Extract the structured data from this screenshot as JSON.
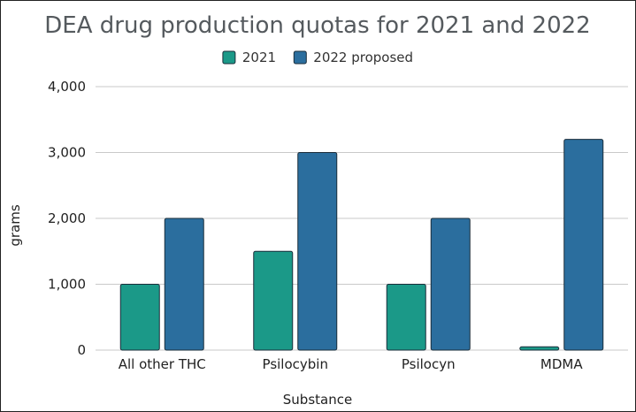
{
  "chart_data": {
    "type": "bar",
    "title": "DEA drug production quotas for 2021 and 2022",
    "xlabel": "Substance",
    "ylabel": "grams",
    "categories": [
      "All other THC",
      "Psilocybin",
      "Psilocyn",
      "MDMA"
    ],
    "series": [
      {
        "name": "2021",
        "values": [
          1000,
          1500,
          1000,
          50
        ],
        "color": "#1b9988"
      },
      {
        "name": "2022 proposed",
        "values": [
          2000,
          3000,
          2000,
          3200
        ],
        "color": "#2b6e9e"
      }
    ],
    "ylim": [
      0,
      4000
    ],
    "yticks": [
      0,
      1000,
      2000,
      3000,
      4000
    ],
    "ytick_labels": [
      "0",
      "1,000",
      "2,000",
      "3,000",
      "4,000"
    ],
    "grid": true,
    "legend_position": "top-center"
  }
}
